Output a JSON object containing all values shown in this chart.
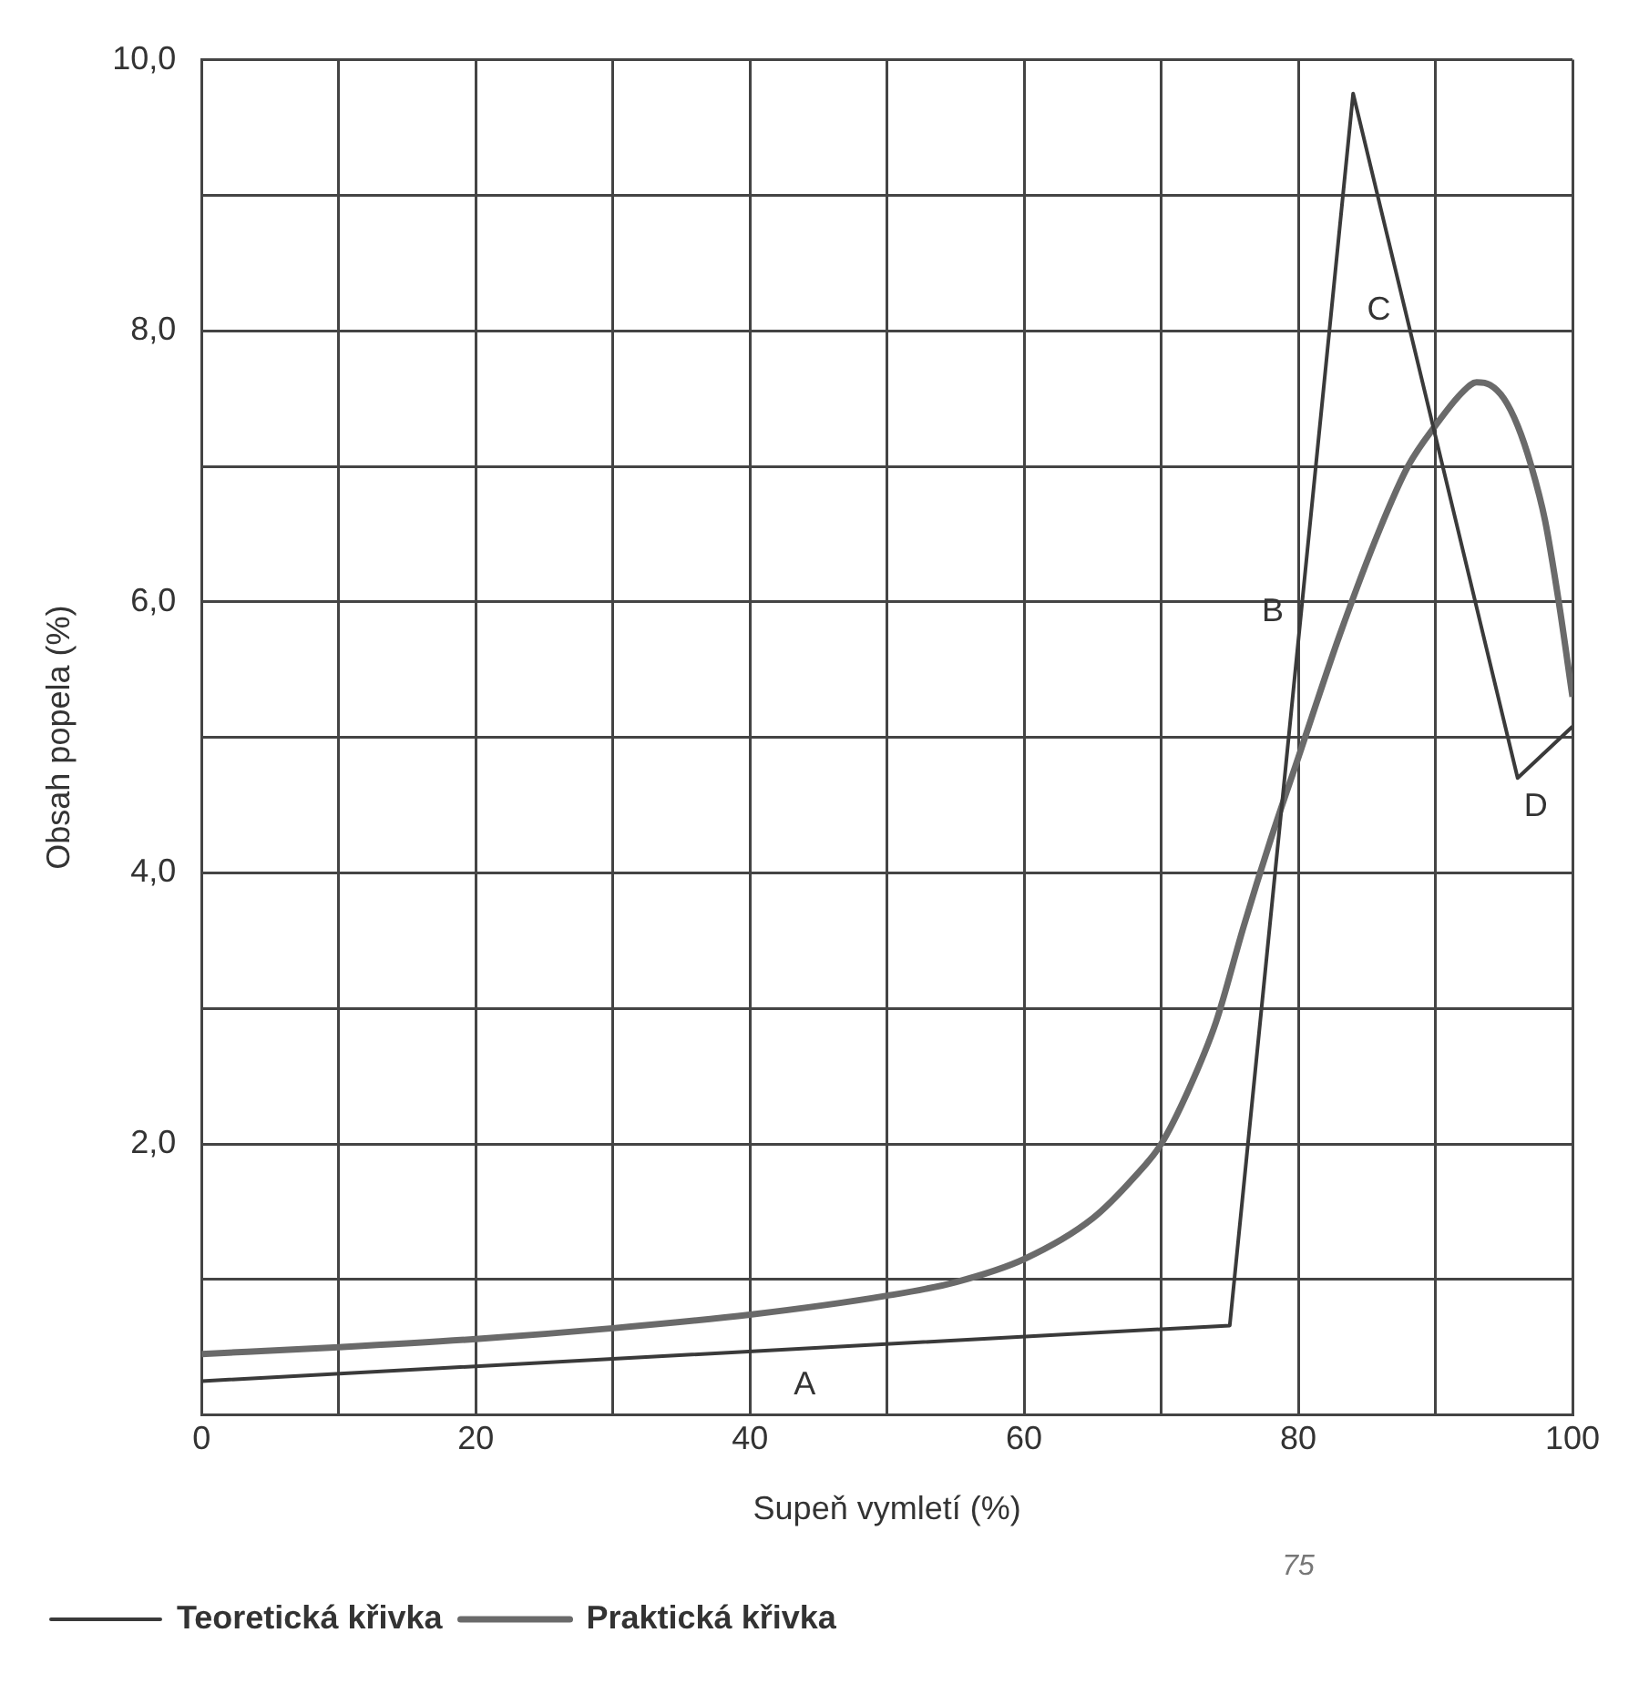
{
  "chart_data": {
    "type": "line",
    "xlabel": "Supeň vymletí (%)",
    "ylabel": "Obsah popela (%)",
    "series": [
      {
        "name": "Teoretická křivka",
        "color": "#3a3a3a",
        "x": [
          0,
          75,
          84,
          96,
          100
        ],
        "values": [
          0.25,
          0.66,
          9.75,
          4.7,
          5.08
        ]
      },
      {
        "name": "Praktická křivka",
        "color": "#6a6a6a",
        "x": [
          0,
          10,
          20,
          30,
          40,
          50,
          55,
          60,
          65,
          68,
          70,
          72,
          74,
          76,
          78,
          80,
          83,
          86,
          88,
          90,
          92,
          93,
          94,
          95,
          96,
          97,
          98,
          99,
          100
        ],
        "values": [
          0.45,
          0.5,
          0.56,
          0.64,
          0.74,
          0.88,
          0.98,
          1.15,
          1.45,
          1.75,
          2.0,
          2.4,
          2.9,
          3.6,
          4.25,
          4.85,
          5.75,
          6.55,
          7.0,
          7.3,
          7.55,
          7.62,
          7.6,
          7.5,
          7.3,
          7.0,
          6.6,
          6.0,
          5.3
        ]
      }
    ],
    "annotations": [
      {
        "text": "A",
        "x": 44,
        "y": 0.49
      },
      {
        "text": "B",
        "x": 80,
        "y": 5.71
      },
      {
        "text": "C",
        "x": 88,
        "y": 8.07
      },
      {
        "text": "D",
        "x": 96,
        "y": 4.7
      },
      "75"
    ],
    "xlim": [
      0,
      100
    ],
    "ylim": [
      0,
      10
    ],
    "xticks": [
      0,
      {
        "value": 10,
        "label": null
      },
      20,
      {
        "value": 30,
        "label": null
      },
      40,
      {
        "value": 50,
        "label": null
      },
      60,
      {
        "value": 70,
        "label": null
      },
      80,
      {
        "value": 90,
        "label": null
      },
      100
    ],
    "yticks": [
      {
        "value": 0,
        "label": null
      },
      {
        "value": 1,
        "label": null
      },
      {
        "value": 2,
        "label": "2,0"
      },
      {
        "value": 3,
        "label": null
      },
      {
        "value": 4,
        "label": "4,0"
      },
      {
        "value": 5,
        "label": null
      },
      {
        "value": 6,
        "label": "6,0"
      },
      {
        "value": 7,
        "label": null
      },
      {
        "value": 8,
        "label": "8,0"
      },
      {
        "value": 9,
        "label": null
      },
      {
        "value": 10,
        "label": "10,0"
      }
    ],
    "grid": true,
    "legend": "bottom",
    "marker": "none",
    "line_style": "solid"
  }
}
